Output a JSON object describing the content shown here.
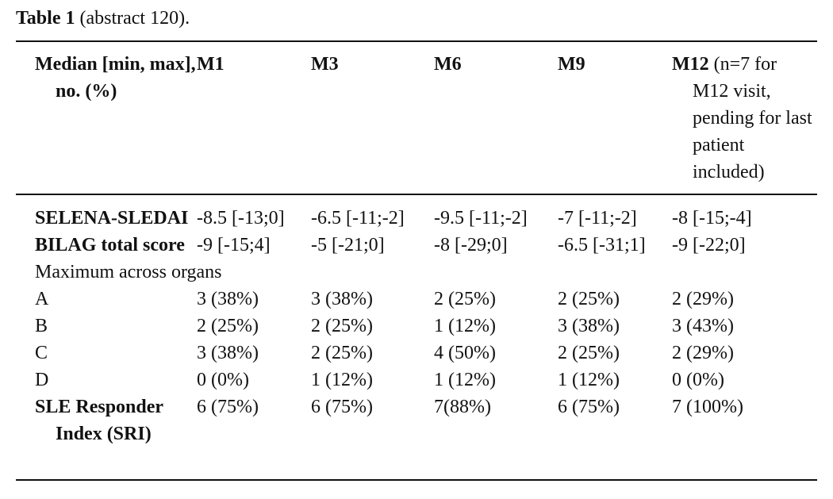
{
  "caption": {
    "label": "Table 1",
    "text": "(abstract 120)."
  },
  "table": {
    "header": [
      "Median [min, max], no. (%)",
      "M1",
      "M3",
      "M6",
      "M9",
      "M12"
    ],
    "header_note": "(n=7 for M12 visit, pending for last patient included)",
    "rows": [
      [
        "SELENA-SLEDAI",
        "-8.5 [-13;0]",
        "-6.5 [-11;-2]",
        "-9.5 [-11;-2]",
        "-7 [-11;-2]",
        "-8 [-15;-4]"
      ],
      [
        "BILAG total score",
        "-9 [-15;4]",
        "-5 [-21;0]",
        "-8 [-29;0]",
        "-6.5 [-31;1]",
        "-9 [-22;0]"
      ],
      [
        "Maximum across organs"
      ],
      [
        "A",
        "3 (38%)",
        "3 (38%)",
        "2 (25%)",
        "2 (25%)",
        "2 (29%)"
      ],
      [
        "B",
        "2 (25%)",
        "2 (25%)",
        "1 (12%)",
        "3 (38%)",
        "3 (43%)"
      ],
      [
        "C",
        "3 (38%)",
        "2 (25%)",
        "4 (50%)",
        "2 (25%)",
        "2 (29%)"
      ],
      [
        "D",
        "0 (0%)",
        "1 (12%)",
        "1 (12%)",
        "1 (12%)",
        "0 (0%)"
      ],
      [
        "SLE Responder Index (SRI)",
        "6 (75%)",
        "6 (75%)",
        "7(88%)",
        "6 (75%)",
        "7 (100%)"
      ]
    ]
  }
}
